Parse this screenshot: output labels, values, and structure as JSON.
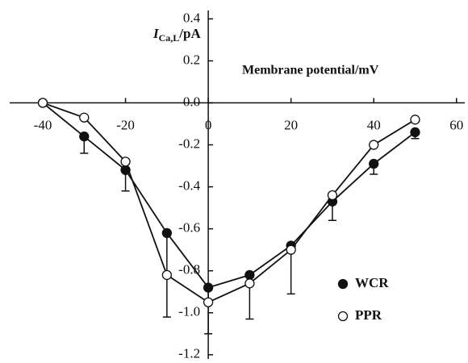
{
  "chart_data": {
    "type": "line",
    "xlabel": "Membrane potential/mV",
    "ylabel": {
      "main": "I",
      "sub": "Ca,L",
      "unit": "/pA"
    },
    "x": [
      -40,
      -30,
      -20,
      -10,
      0,
      10,
      20,
      30,
      40,
      50
    ],
    "series": [
      {
        "name": "WCR",
        "color": "#111111",
        "filled": true,
        "values": [
          0.0,
          -0.16,
          -0.32,
          -0.62,
          -0.88,
          -0.82,
          -0.68,
          -0.47,
          -0.29,
          -0.14
        ],
        "errors": [
          null,
          0.08,
          0.1,
          0.4,
          0.22,
          null,
          null,
          0.09,
          0.05,
          0.03
        ]
      },
      {
        "name": "PPR",
        "color": "#111111",
        "filled": false,
        "values": [
          0.0,
          -0.07,
          -0.28,
          -0.82,
          -0.95,
          -0.86,
          -0.7,
          -0.44,
          -0.2,
          -0.08
        ],
        "errors": [
          null,
          null,
          null,
          null,
          null,
          0.17,
          0.21,
          null,
          null,
          null
        ]
      }
    ],
    "xlim": [
      -48,
      62
    ],
    "ylim": [
      -1.22,
      0.44
    ],
    "xticks": [
      -40,
      -20,
      0,
      20,
      40,
      60
    ],
    "yticks": [
      0.4,
      0.2,
      {
        "value": 0,
        "label": "0.0"
      },
      -0.2,
      -0.4,
      -0.6,
      -0.8,
      {
        "value": -1,
        "label": "-1.0"
      },
      -1.2
    ]
  }
}
